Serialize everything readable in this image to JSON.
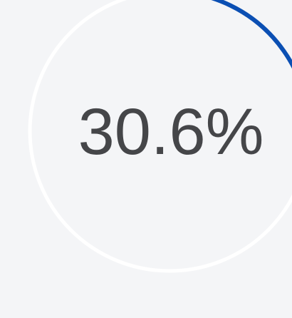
{
  "chart_data": {
    "type": "gauge",
    "value": 30.6,
    "value_label": "30.6%",
    "max": 100,
    "color": "#0b4fb3",
    "track_color": "#ffffff"
  }
}
